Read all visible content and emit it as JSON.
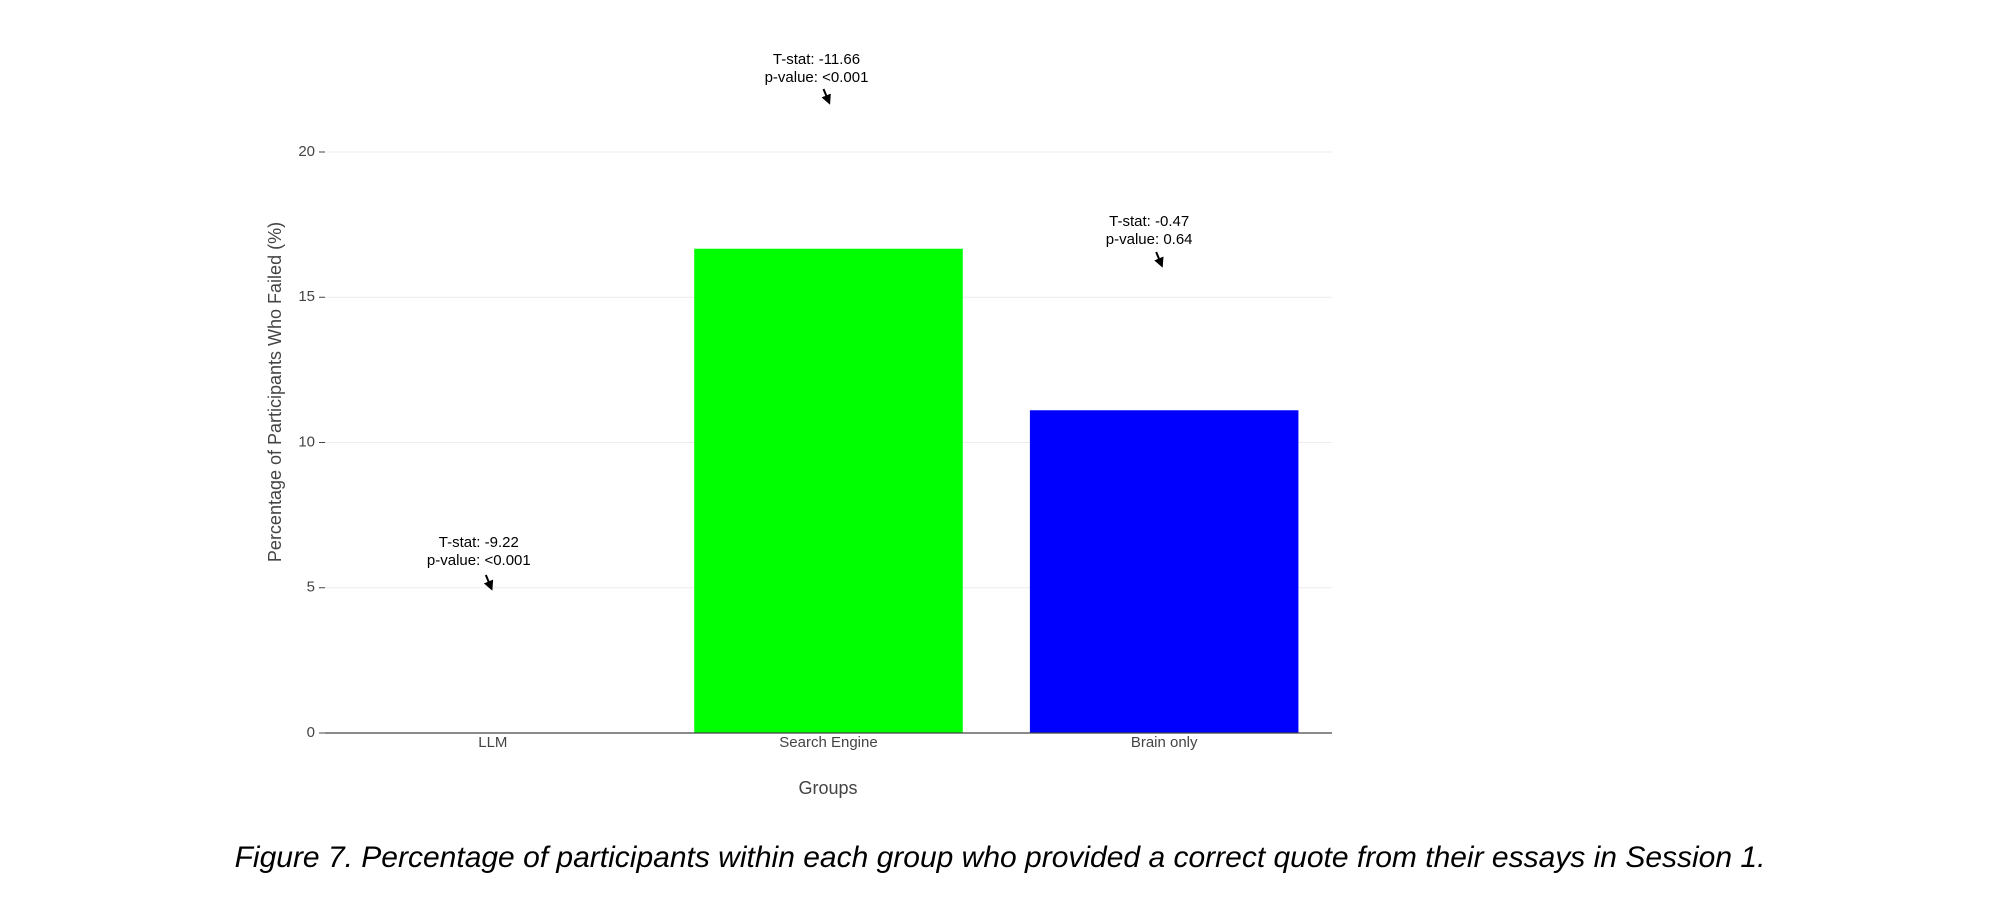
{
  "chart_data": {
    "type": "bar",
    "categories": [
      "LLM",
      "Search Engine",
      "Brain only"
    ],
    "values": [
      0,
      16.67,
      11.11
    ],
    "colors": [
      "#00ff00",
      "#00ff00",
      "#0000ff"
    ],
    "ylim": [
      0,
      20
    ],
    "yticks": [
      0,
      5,
      10,
      15,
      20
    ],
    "grid": true,
    "x_label": "Groups",
    "y_label": "Percentage of Participants Who Failed (%)",
    "annotations": [
      {
        "lines": [
          "T-stat: -9.22",
          "p-value: <0.001"
        ]
      },
      {
        "lines": [
          "T-stat: -11.66",
          "p-value: <0.001"
        ]
      },
      {
        "lines": [
          "T-stat: -0.47",
          "p-value: 0.64"
        ]
      }
    ],
    "caption": "Figure 7. Percentage of participants within each group who provided a correct quote from their essays in Session 1."
  }
}
